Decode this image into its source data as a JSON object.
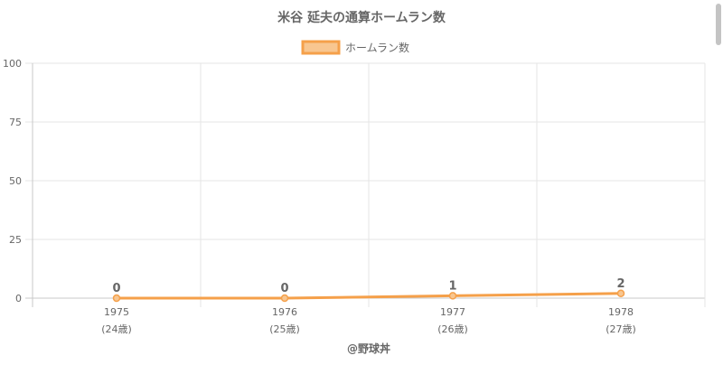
{
  "chart_data": {
    "type": "line",
    "title": "米谷 延夫の通算ホームラン数",
    "categories": [
      "1975",
      "1976",
      "1977",
      "1978"
    ],
    "category_sublabels": [
      "(24歳)",
      "(25歳)",
      "(26歳)",
      "(27歳)"
    ],
    "series": [
      {
        "name": "ホームラン数",
        "values": [
          0,
          0,
          1,
          2
        ]
      }
    ],
    "ylim": [
      0,
      100
    ],
    "yticks": [
      0,
      25,
      50,
      75,
      100
    ],
    "grid": true,
    "legend_position": "top-center",
    "data_labels": true,
    "colors": {
      "line": "#f5a04a",
      "fill": "#f8c690",
      "grid": "#e5e5e5",
      "axis": "#c8c8c8",
      "text": "#666666"
    }
  },
  "footer": {
    "credit": "@野球丼"
  }
}
